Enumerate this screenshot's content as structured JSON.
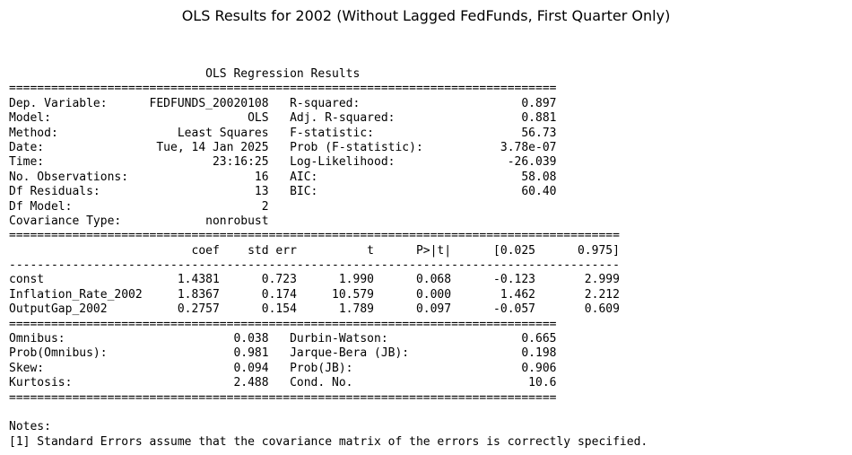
{
  "figure_title": "OLS Results for 2002 (Without Lagged FedFunds, First Quarter Only)",
  "summary": {
    "heading": "                            OLS Regression Results                            ",
    "rule_double_short": "==============================================================================",
    "rule_double_long": "=======================================================================================",
    "rule_single_long": "---------------------------------------------------------------------------------------",
    "model_info": [
      "Dep. Variable:      FEDFUNDS_20020108   R-squared:                       0.897",
      "Model:                            OLS   Adj. R-squared:                  0.881",
      "Method:                 Least Squares   F-statistic:                     56.73",
      "Date:                Tue, 14 Jan 2025   Prob (F-statistic):           3.78e-07",
      "Time:                        23:16:25   Log-Likelihood:                -26.039",
      "No. Observations:                  16   AIC:                             58.08",
      "Df Residuals:                      13   BIC:                             60.40",
      "Df Model:                           2                                         ",
      "Covariance Type:            nonrobust                                         "
    ],
    "coef_header": "                          coef    std err          t      P>|t|      [0.025      0.975]",
    "coef_rows": [
      "const                   1.4381      0.723      1.990      0.068      -0.123       2.999",
      "Inflation_Rate_2002     1.8367      0.174     10.579      0.000       1.462       2.212",
      "OutputGap_2002          0.2757      0.154      1.789      0.097      -0.057       0.609"
    ],
    "diagnostics": [
      "Omnibus:                        0.038   Durbin-Watson:                   0.665",
      "Prob(Omnibus):                  0.981   Jarque-Bera (JB):                0.198",
      "Skew:                           0.094   Prob(JB):                        0.906",
      "Kurtosis:                       2.488   Cond. No.                         10.6"
    ],
    "notes_title": "Notes:",
    "notes": [
      "[1] Standard Errors assume that the covariance matrix of the errors is correctly specified."
    ]
  }
}
